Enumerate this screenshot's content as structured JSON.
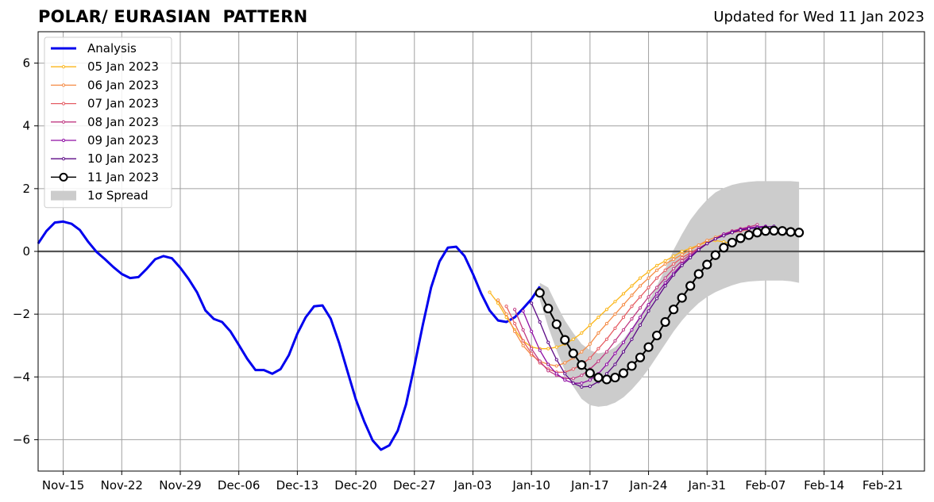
{
  "header": {
    "title": "POLAR/ EURASIAN  PATTERN",
    "subtitle": "Updated for Wed 11 Jan 2023"
  },
  "chart_data": {
    "type": "line",
    "title": "POLAR/ EURASIAN  PATTERN",
    "subtitle": "Updated for Wed 11 Jan 2023",
    "xlabel": "",
    "ylabel": "",
    "x_ticks": [
      {
        "label": "Nov-15",
        "x": "2022-11-15"
      },
      {
        "label": "Nov-22",
        "x": "2022-11-22"
      },
      {
        "label": "Nov-29",
        "x": "2022-11-29"
      },
      {
        "label": "Dec-06",
        "x": "2022-12-06"
      },
      {
        "label": "Dec-13",
        "x": "2022-12-13"
      },
      {
        "label": "Dec-20",
        "x": "2022-12-20"
      },
      {
        "label": "Dec-27",
        "x": "2022-12-27"
      },
      {
        "label": "Jan-03",
        "x": "2023-01-03"
      },
      {
        "label": "Jan-10",
        "x": "2023-01-10"
      },
      {
        "label": "Jan-17",
        "x": "2023-01-17"
      },
      {
        "label": "Jan-24",
        "x": "2023-01-24"
      },
      {
        "label": "Jan-31",
        "x": "2023-01-31"
      },
      {
        "label": "Feb-07",
        "x": "2023-02-07"
      },
      {
        "label": "Feb-14",
        "x": "2023-02-14"
      },
      {
        "label": "Feb-21",
        "x": "2023-02-21"
      }
    ],
    "y_ticks": [
      {
        "label": "6",
        "value": 6
      },
      {
        "label": "4",
        "value": 4
      },
      {
        "label": "2",
        "value": 2
      },
      {
        "label": "0",
        "value": 0
      },
      {
        "label": "−2",
        "value": -2
      },
      {
        "label": "−4",
        "value": -4
      },
      {
        "label": "−6",
        "value": -6
      }
    ],
    "xlim": [
      "2022-11-12",
      "2023-02-26"
    ],
    "ylim": [
      -7,
      7
    ],
    "grid": true,
    "legend_position": "top-left",
    "zero_line": true,
    "analysis": {
      "name": "Analysis",
      "color": "#0000ee",
      "start": "2022-11-12",
      "values": [
        0.25,
        0.65,
        0.92,
        0.95,
        0.88,
        0.68,
        0.3,
        -0.02,
        -0.25,
        -0.5,
        -0.72,
        -0.85,
        -0.82,
        -0.55,
        -0.25,
        -0.15,
        -0.22,
        -0.52,
        -0.88,
        -1.3,
        -1.88,
        -2.15,
        -2.25,
        -2.55,
        -2.98,
        -3.42,
        -3.78,
        -3.78,
        -3.9,
        -3.75,
        -3.3,
        -2.62,
        -2.1,
        -1.75,
        -1.72,
        -2.15,
        -2.92,
        -3.82,
        -4.72,
        -5.42,
        -6.02,
        -6.32,
        -6.18,
        -5.72,
        -4.88,
        -3.65,
        -2.35,
        -1.15,
        -0.32,
        0.12,
        0.15,
        -0.15,
        -0.72,
        -1.35,
        -1.88,
        -2.2,
        -2.25,
        -2.1,
        -1.82,
        -1.52,
        -1.12
      ]
    },
    "forecasts": [
      {
        "name": "05 Jan 2023",
        "color": "#fbb61a",
        "start": "2023-01-05",
        "values": [
          -1.3,
          -1.65,
          -2.1,
          -2.5,
          -2.85,
          -3.05,
          -3.1,
          -3.1,
          -3.05,
          -2.95,
          -2.8,
          -2.6,
          -2.35,
          -2.1,
          -1.85,
          -1.6,
          -1.35,
          -1.1,
          -0.85,
          -0.65,
          -0.45,
          -0.3,
          -0.15,
          0.0,
          0.1,
          0.2,
          0.3,
          0.35,
          0.3,
          0.25
        ]
      },
      {
        "name": "06 Jan 2023",
        "color": "#f58c46",
        "start": "2023-01-06",
        "values": [
          -1.55,
          -2.0,
          -2.55,
          -3.0,
          -3.3,
          -3.5,
          -3.6,
          -3.65,
          -3.55,
          -3.4,
          -3.2,
          -2.95,
          -2.6,
          -2.3,
          -2.0,
          -1.7,
          -1.4,
          -1.1,
          -0.85,
          -0.6,
          -0.4,
          -0.25,
          -0.1,
          0.05,
          0.2,
          0.35,
          0.45,
          0.55,
          0.6,
          0.65
        ]
      },
      {
        "name": "07 Jan 2023",
        "color": "#e55c63",
        "start": "2023-01-07",
        "values": [
          -1.75,
          -2.3,
          -2.85,
          -3.25,
          -3.55,
          -3.75,
          -3.85,
          -3.85,
          -3.75,
          -3.6,
          -3.4,
          -3.1,
          -2.8,
          -2.45,
          -2.1,
          -1.75,
          -1.45,
          -1.15,
          -0.85,
          -0.6,
          -0.4,
          -0.2,
          -0.05,
          0.1,
          0.25,
          0.4,
          0.5,
          0.6,
          0.65,
          0.7
        ]
      },
      {
        "name": "08 Jan 2023",
        "color": "#c03a83",
        "start": "2023-01-08",
        "values": [
          -1.85,
          -2.5,
          -3.1,
          -3.5,
          -3.8,
          -3.95,
          -4.05,
          -4.05,
          -3.95,
          -3.75,
          -3.5,
          -3.2,
          -2.85,
          -2.5,
          -2.15,
          -1.8,
          -1.45,
          -1.15,
          -0.85,
          -0.55,
          -0.3,
          -0.1,
          0.1,
          0.25,
          0.4,
          0.55,
          0.65,
          0.72,
          0.78,
          0.85
        ]
      },
      {
        "name": "09 Jan 2023",
        "color": "#8f0da4",
        "start": "2023-01-09",
        "values": [
          -1.9,
          -2.55,
          -3.15,
          -3.6,
          -3.9,
          -4.1,
          -4.2,
          -4.2,
          -4.1,
          -3.9,
          -3.6,
          -3.25,
          -2.9,
          -2.5,
          -2.1,
          -1.7,
          -1.35,
          -1.0,
          -0.7,
          -0.4,
          -0.15,
          0.05,
          0.25,
          0.4,
          0.55,
          0.62,
          0.7,
          0.75,
          0.78,
          0.8
        ]
      },
      {
        "name": "10 Jan 2023",
        "color": "#5c0a86",
        "start": "2023-01-10",
        "values": [
          -1.65,
          -2.25,
          -2.9,
          -3.45,
          -3.9,
          -4.2,
          -4.32,
          -4.3,
          -4.15,
          -3.9,
          -3.6,
          -3.2,
          -2.8,
          -2.35,
          -1.9,
          -1.5,
          -1.1,
          -0.75,
          -0.45,
          -0.2,
          0.05,
          0.25,
          0.4,
          0.5,
          0.6,
          0.68,
          0.72,
          0.75,
          0.78,
          0.8
        ]
      },
      {
        "name": "11 Jan 2023",
        "color": "#000000",
        "start": "2023-01-11",
        "values": [
          -1.32,
          -1.82,
          -2.32,
          -2.82,
          -3.25,
          -3.62,
          -3.88,
          -4.02,
          -4.08,
          -4.02,
          -3.88,
          -3.65,
          -3.38,
          -3.05,
          -2.68,
          -2.25,
          -1.85,
          -1.48,
          -1.1,
          -0.72,
          -0.42,
          -0.12,
          0.12,
          0.28,
          0.42,
          0.52,
          0.6,
          0.65,
          0.66,
          0.65,
          0.62,
          0.6
        ]
      }
    ],
    "spread": {
      "name": "1σ Spread",
      "color": "#cccccc",
      "start": "2023-01-11",
      "upper": [
        -1.0,
        -1.15,
        -1.7,
        -2.2,
        -2.6,
        -2.95,
        -3.15,
        -3.25,
        -3.2,
        -3.05,
        -2.8,
        -2.45,
        -2.05,
        -1.6,
        -1.1,
        -0.55,
        0.05,
        0.55,
        1.0,
        1.35,
        1.65,
        1.88,
        2.02,
        2.12,
        2.18,
        2.22,
        2.24,
        2.24,
        2.24,
        2.24,
        2.24,
        2.22
      ],
      "lower": [
        -1.55,
        -2.4,
        -3.15,
        -3.8,
        -4.3,
        -4.7,
        -4.9,
        -4.95,
        -4.92,
        -4.82,
        -4.65,
        -4.4,
        -4.1,
        -3.75,
        -3.35,
        -2.95,
        -2.55,
        -2.2,
        -1.9,
        -1.65,
        -1.45,
        -1.3,
        -1.18,
        -1.08,
        -1.0,
        -0.96,
        -0.94,
        -0.93,
        -0.93,
        -0.93,
        -0.95,
        -1.0
      ]
    },
    "legend": [
      {
        "label": "Analysis",
        "kind": "analysis",
        "color": "#0000ee"
      },
      {
        "label": "05 Jan 2023",
        "kind": "forecast",
        "color": "#fbb61a"
      },
      {
        "label": "06 Jan 2023",
        "kind": "forecast",
        "color": "#f58c46"
      },
      {
        "label": "07 Jan 2023",
        "kind": "forecast",
        "color": "#e55c63"
      },
      {
        "label": "08 Jan 2023",
        "kind": "forecast",
        "color": "#c03a83"
      },
      {
        "label": "09 Jan 2023",
        "kind": "forecast",
        "color": "#8f0da4"
      },
      {
        "label": "10 Jan 2023",
        "kind": "forecast",
        "color": "#5c0a86"
      },
      {
        "label": "11 Jan 2023",
        "kind": "latest",
        "color": "#000000"
      },
      {
        "label": "1σ Spread",
        "kind": "spread",
        "color": "#cccccc"
      }
    ]
  }
}
